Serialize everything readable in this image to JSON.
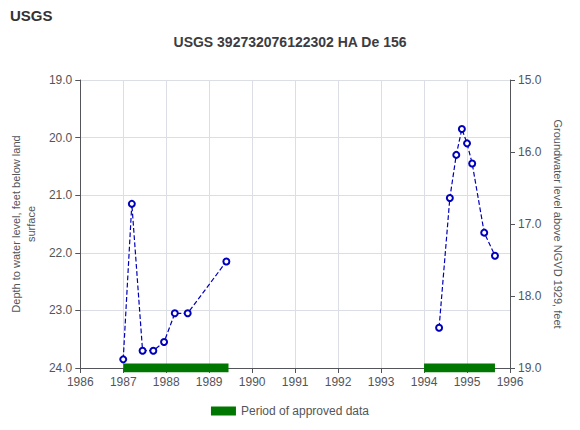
{
  "chart_data": {
    "type": "line",
    "title": "USGS 392732076122302 HA De 156",
    "annotations": [
      "USGS"
    ],
    "ylabel": "Depth to water level, feet below land\nsurface",
    "y2label": "Groundwater level above NGVD 1929, feet",
    "xlim": [
      1986,
      1996
    ],
    "xticks": [
      1986,
      1987,
      1988,
      1989,
      1990,
      1991,
      1992,
      1993,
      1994,
      1995,
      1996
    ],
    "ylim": [
      24.0,
      19.0
    ],
    "yticks": [
      {
        "value": 19.0,
        "label": "19.0"
      },
      {
        "value": 20.0,
        "label": "20.0"
      },
      {
        "value": 21.0,
        "label": "21.0"
      },
      {
        "value": 22.0,
        "label": "22.0"
      },
      {
        "value": 23.0,
        "label": "23.0"
      },
      {
        "value": 24.0,
        "label": "24.0"
      }
    ],
    "y2lim": [
      19.0,
      15.0
    ],
    "y2ticks": [
      {
        "value": 19.0,
        "label": "19.0"
      },
      {
        "value": 18.0,
        "label": "18.0"
      },
      {
        "value": 17.0,
        "label": "17.0"
      },
      {
        "value": 16.0,
        "label": "16.0"
      },
      {
        "value": 15.0,
        "label": "15.0"
      }
    ],
    "grid": true,
    "legend": "bottom",
    "series": [
      {
        "x": [
          1987.0,
          1987.2,
          1987.45,
          1987.7,
          1987.95,
          1988.2,
          1988.5,
          1989.4
        ],
        "values": [
          23.85,
          21.15,
          23.7,
          23.7,
          23.55,
          23.05,
          23.05,
          22.15
        ],
        "color": "#0000bb",
        "marker": "circle",
        "line_style": "dashed"
      },
      {
        "x": [
          1994.35,
          1994.6,
          1994.75,
          1994.88,
          1995.0,
          1995.12,
          1995.4,
          1995.65
        ],
        "values": [
          23.3,
          21.05,
          20.3,
          19.85,
          20.1,
          20.45,
          21.65,
          22.05
        ],
        "color": "#0000bb",
        "marker": "circle",
        "line_style": "dashed"
      },
      {
        "name": "Period of approved data",
        "type": "bar",
        "orientation": "horizontal",
        "color": "#007700",
        "ranges": [
          [
            1987.0,
            1989.45
          ],
          [
            1994.0,
            1995.65
          ]
        ],
        "values": [
          24.0,
          24.0
        ]
      }
    ]
  }
}
